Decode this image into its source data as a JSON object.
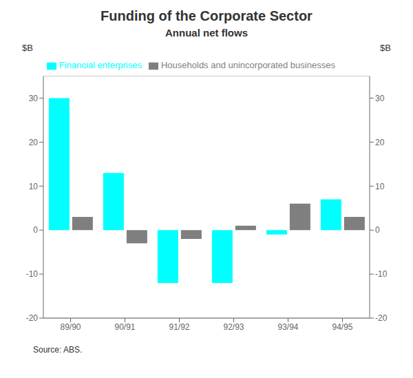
{
  "chart_data": {
    "type": "bar",
    "title": "Funding of the Corporate Sector",
    "subtitle": "Annual net flows",
    "categories": [
      "89/90",
      "90/91",
      "91/92",
      "92/93",
      "93/94",
      "94/95"
    ],
    "series": [
      {
        "name": "Financial enterprises",
        "color": "#00FFFF",
        "values": [
          30,
          13,
          -12,
          -12,
          -1,
          7
        ]
      },
      {
        "name": "Households and unincorporated businesses",
        "color": "#7F7F7F",
        "values": [
          3,
          -3,
          -2,
          1,
          6,
          3
        ]
      }
    ],
    "ylim": [
      -20,
      35
    ],
    "yticks": [
      -20,
      -10,
      0,
      10,
      20,
      30
    ],
    "y2lim": [
      -20,
      35
    ],
    "y2ticks": [
      -20,
      -10,
      0,
      10,
      20,
      30
    ],
    "ylabel": "$B",
    "y2label": "$B",
    "annotations": [
      "Source: ABS."
    ],
    "grid": true,
    "legend": "upper left"
  }
}
